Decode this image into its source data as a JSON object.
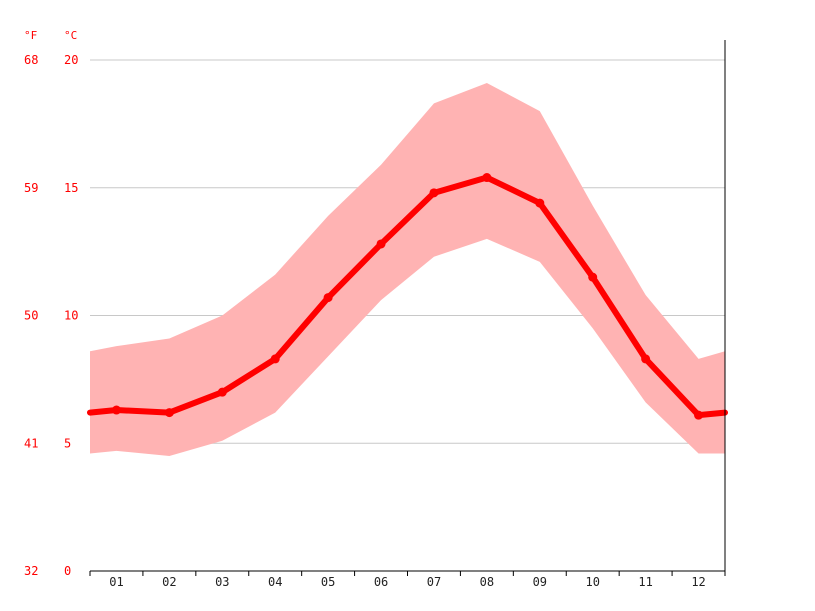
{
  "chart_data": {
    "type": "line",
    "units": {
      "fahrenheit": "°F",
      "celsius": "°C"
    },
    "categories": [
      "01",
      "02",
      "03",
      "04",
      "05",
      "06",
      "07",
      "08",
      "09",
      "10",
      "11",
      "12"
    ],
    "series": [
      {
        "role": "mean",
        "values": [
          6.3,
          6.2,
          7.0,
          8.3,
          10.7,
          12.8,
          14.8,
          15.4,
          14.4,
          11.5,
          8.3,
          6.1
        ]
      },
      {
        "role": "max",
        "values": [
          8.8,
          9.1,
          10.0,
          11.6,
          13.9,
          15.9,
          18.3,
          19.1,
          18.0,
          14.3,
          10.8,
          8.3
        ]
      },
      {
        "role": "min",
        "values": [
          4.7,
          4.5,
          5.1,
          6.2,
          8.4,
          10.6,
          12.3,
          13.0,
          12.1,
          9.5,
          6.6,
          4.6
        ]
      }
    ],
    "edge_values": {
      "mean": [
        6.2,
        6.2
      ],
      "max": [
        8.6,
        8.6
      ],
      "min": [
        4.6,
        4.6
      ]
    },
    "ylim": [
      0,
      20
    ],
    "celsius_ticks": [
      "0",
      "5",
      "10",
      "15",
      "20"
    ],
    "fahrenheit_ticks": [
      "32",
      "41",
      "50",
      "59",
      "68"
    ],
    "grid": true,
    "colors": {
      "line": "#ff0000",
      "band": "#ffb3b3",
      "grid": "#c8c8c8",
      "axis": "#000000",
      "text": "#ff0000",
      "xtext": "#222222"
    }
  }
}
